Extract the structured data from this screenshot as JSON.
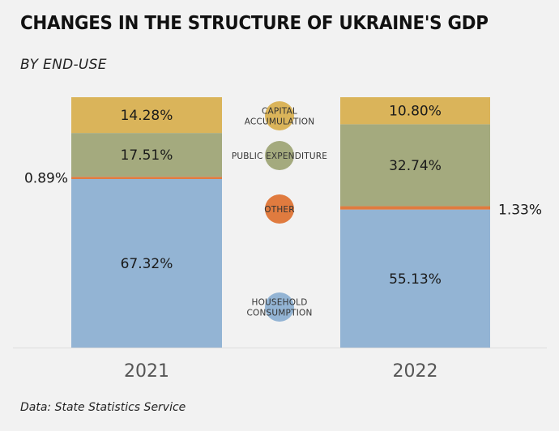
{
  "header": {
    "title": "CHANGES IN THE STRUCTURE OF UKRAINE'S GDP",
    "subtitle": "BY END-USE"
  },
  "footer": {
    "source": "Data: State Statistics Service"
  },
  "chart_data": {
    "type": "bar",
    "stacked": true,
    "title": "CHANGES IN THE STRUCTURE OF UKRAINE'S GDP",
    "subtitle": "BY END-USE",
    "xlabel": "",
    "ylabel": "",
    "ylim": [
      0,
      100
    ],
    "grid": false,
    "legend_position": "center-between-bars",
    "categories": [
      "2021",
      "2022"
    ],
    "series": [
      {
        "name": "HOUSEHOLD CONSUMPTION",
        "legend_lines": [
          "HOUSEHOLD",
          "CONSUMPTION"
        ],
        "color": "#93b4d4",
        "values": [
          67.32,
          55.13
        ],
        "labels": [
          "67.32%",
          "55.13%"
        ]
      },
      {
        "name": "OTHER",
        "legend_lines": [
          "OTHER"
        ],
        "color": "#e07b3f",
        "values": [
          0.89,
          1.33
        ],
        "labels": [
          "0.89%",
          "1.33%"
        ]
      },
      {
        "name": "PUBLIC EXPENDITURE",
        "legend_lines": [
          "PUBLIC EXPENDITURE"
        ],
        "color": "#a4aa7e",
        "values": [
          17.51,
          32.74
        ],
        "labels": [
          "17.51%",
          "32.74%"
        ]
      },
      {
        "name": "CAPITAL ACCUMULATION",
        "legend_lines": [
          "CAPITAL",
          "ACCUMULATION"
        ],
        "color": "#dab45a",
        "values": [
          14.28,
          10.8
        ],
        "labels": [
          "14.28%",
          "10.80%"
        ]
      }
    ],
    "source": "Data: State Statistics Service"
  }
}
